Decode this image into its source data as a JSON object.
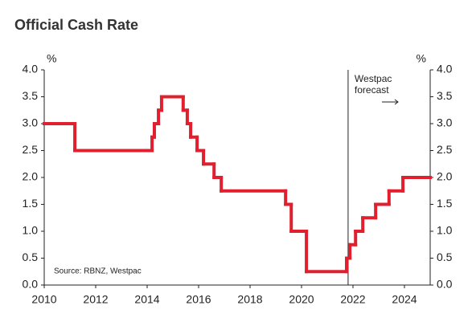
{
  "chart_data": {
    "type": "line",
    "step": "post",
    "title": "Official Cash Rate",
    "y_unit_left": "%",
    "y_unit_right": "%",
    "forecast_label": [
      "Westpac",
      "forecast"
    ],
    "forecast_x": 2021.81,
    "source": "Source: RBNZ, Westpac",
    "series": [
      {
        "color": "#e0202e",
        "x": [
          2010,
          2011.19,
          2014.19,
          2014.28,
          2014.44,
          2014.56,
          2015.4,
          2015.56,
          2015.69,
          2015.94,
          2016.19,
          2016.6,
          2016.88,
          2019.38,
          2019.6,
          2020.19,
          2021.75,
          2021.88,
          2022.1,
          2022.38,
          2022.88,
          2023.4,
          2023.94
        ],
        "values": [
          3.0,
          2.5,
          2.75,
          3.0,
          3.25,
          3.5,
          3.25,
          3.0,
          2.75,
          2.5,
          2.25,
          2.0,
          1.75,
          1.5,
          1.0,
          0.25,
          0.5,
          0.75,
          1.0,
          1.25,
          1.5,
          1.75,
          2.0
        ]
      }
    ],
    "xlim": [
      2010,
      2025
    ],
    "xticks": [
      2010,
      2012,
      2014,
      2016,
      2018,
      2020,
      2022,
      2024
    ],
    "ylim": [
      0,
      4
    ],
    "yticks": [
      {
        "value": 0,
        "label": "0.0"
      },
      {
        "value": 0.5,
        "label": "0.5"
      },
      {
        "value": 1,
        "label": "1.0"
      },
      {
        "value": 1.5,
        "label": "1.5"
      },
      {
        "value": 2,
        "label": "2.0"
      },
      {
        "value": 2.5,
        "label": "2.5"
      },
      {
        "value": 3,
        "label": "3.0"
      },
      {
        "value": 3.5,
        "label": "3.5"
      },
      {
        "value": 4,
        "label": "4.0"
      }
    ],
    "y2lim": [
      0,
      4
    ],
    "y2ticks": [
      {
        "value": 0,
        "label": "0.0"
      },
      {
        "value": 0.5,
        "label": "0.5"
      },
      {
        "value": 1,
        "label": "1.0"
      },
      {
        "value": 1.5,
        "label": "1.5"
      },
      {
        "value": 2,
        "label": "2.0"
      },
      {
        "value": 2.5,
        "label": "2.5"
      },
      {
        "value": 3,
        "label": "3.0"
      },
      {
        "value": 3.5,
        "label": "3.5"
      },
      {
        "value": 4,
        "label": "4.0"
      }
    ]
  }
}
